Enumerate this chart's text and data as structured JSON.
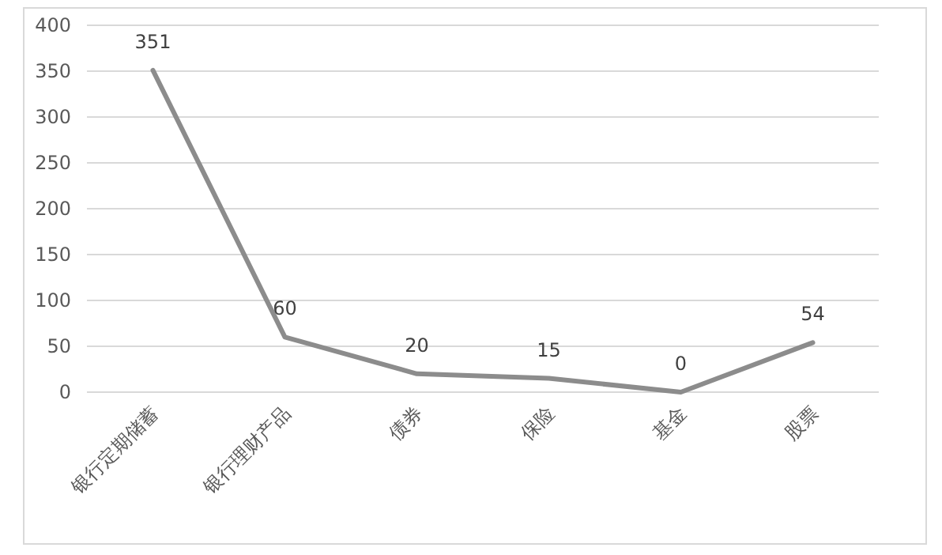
{
  "chart_data": {
    "type": "line",
    "categories": [
      "银行定期储蓄",
      "银行理财产品",
      "债券",
      "保险",
      "基金",
      "股票"
    ],
    "series": [
      {
        "color": "#8c8c8c",
        "values": [
          351,
          60,
          20,
          15,
          0,
          54
        ]
      }
    ],
    "ylim": [
      0,
      400
    ],
    "yticks": [
      0,
      50,
      100,
      150,
      200,
      250,
      300,
      350,
      400
    ],
    "grid": "y",
    "data_labels": true,
    "marker": "none",
    "line_style": "solid"
  }
}
